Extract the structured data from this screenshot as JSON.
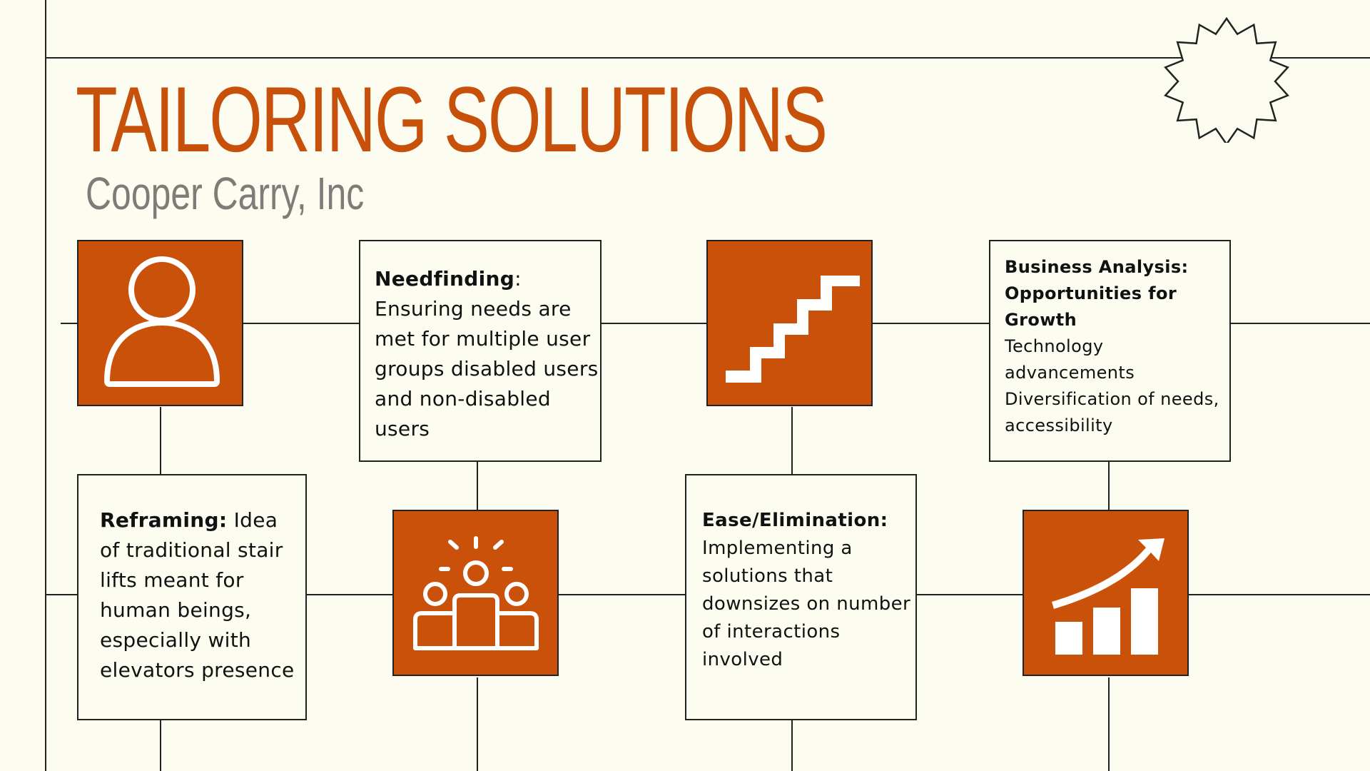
{
  "title": "TAILORING SOLUTIONS",
  "subtitle": "Cooper Carry, Inc",
  "colors": {
    "accent": "#c9510a",
    "title": "#c7500a",
    "subtitle": "#7d7c78",
    "background": "#fdfcf1",
    "line": "#222222"
  },
  "icons": {
    "user": "user-icon",
    "stairs": "stairs-icon",
    "group": "group-icon",
    "growth": "growth-chart-icon",
    "decoration": "starburst-icon"
  },
  "boxes": {
    "needfinding": {
      "heading": "Needfinding",
      "separator": ":",
      "body": "Ensuring needs are met for multiple user groups  disabled users and non-disabled users"
    },
    "business": {
      "heading": "Business Analysis: Opportunities for Growth",
      "body_line1": "Technology advancements",
      "body_line2": "Diversification of needs, accessibility"
    },
    "reframing": {
      "heading": "Reframing:",
      "body": " Idea of traditional stair lifts meant for human beings, especially with elevators presence"
    },
    "ease": {
      "heading": "Ease/Elimination:",
      "body": "Implementing a solutions that downsizes on number of interactions involved"
    }
  }
}
